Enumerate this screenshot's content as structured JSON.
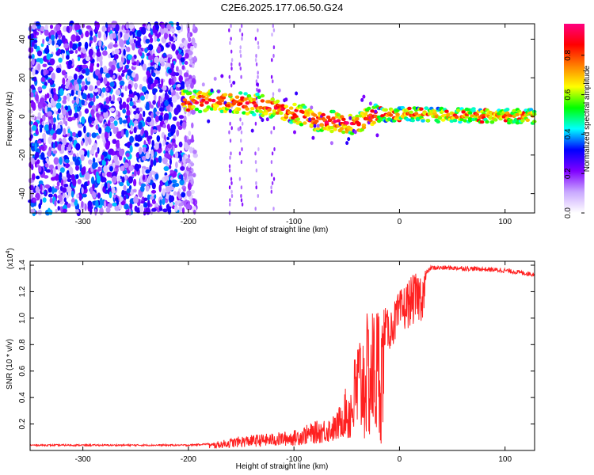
{
  "title": "C2E6.2025.177.06.50.G24",
  "chart_data": [
    {
      "type": "heatmap",
      "xlabel": "Height of straight line (km)",
      "ylabel": "Frequency (Hz)",
      "xlim": [
        -350,
        128
      ],
      "ylim": [
        -50,
        48
      ],
      "xticks": [
        -300,
        -200,
        -100,
        0,
        100
      ],
      "yticks": [
        -40,
        -20,
        0,
        20,
        40
      ],
      "colorbar": {
        "label": "Normalized spectral amplitude",
        "range": [
          0,
          0.96
        ],
        "ticks": [
          "0.0",
          "0.2",
          "0.4",
          "0.6",
          "0.8"
        ],
        "tick_values": [
          0,
          0.2,
          0.4,
          0.6,
          0.8
        ],
        "colors": [
          "#ffffff",
          "#c9a8ff",
          "#8000ff",
          "#0000ff",
          "#00ffff",
          "#00ff00",
          "#ffff00",
          "#ff8000",
          "#ff0000",
          "#ff0080"
        ]
      },
      "regions": {
        "noise_x": [
          -350,
          -205
        ],
        "signal_track": [
          {
            "x": -205,
            "y": 8
          },
          {
            "x": -180,
            "y": 8
          },
          {
            "x": -150,
            "y": 7
          },
          {
            "x": -120,
            "y": 5
          },
          {
            "x": -100,
            "y": 2
          },
          {
            "x": -80,
            "y": -2
          },
          {
            "x": -60,
            "y": -3
          },
          {
            "x": -40,
            "y": -4
          },
          {
            "x": -30,
            "y": -1
          },
          {
            "x": -20,
            "y": 1
          },
          {
            "x": 0,
            "y": 1
          },
          {
            "x": 128,
            "y": 0
          }
        ]
      }
    },
    {
      "type": "line",
      "xlabel": "Height of straight line (km)",
      "ylabel": "SNR (10 * v/v)",
      "yscale_label": "(x10",
      "yscale_exp": "4",
      "yscale_close": ")",
      "xlim": [
        -350,
        128
      ],
      "ylim": [
        0,
        1.43
      ],
      "xticks": [
        -300,
        -200,
        -100,
        0,
        100
      ],
      "yticks": [
        "0.2",
        "0.4",
        "0.6",
        "0.8",
        "1.0",
        "1.2",
        "1.4"
      ],
      "ytick_values": [
        0.2,
        0.4,
        0.6,
        0.8,
        1.0,
        1.2,
        1.4
      ],
      "color": "#ff2020",
      "envelope": [
        {
          "x": -350,
          "y": 0.04
        },
        {
          "x": -200,
          "y": 0.04
        },
        {
          "x": -180,
          "y": 0.05
        },
        {
          "x": -150,
          "y": 0.1
        },
        {
          "x": -120,
          "y": 0.12
        },
        {
          "x": -100,
          "y": 0.14
        },
        {
          "x": -80,
          "y": 0.2
        },
        {
          "x": -60,
          "y": 0.25
        },
        {
          "x": -45,
          "y": 0.55
        },
        {
          "x": -40,
          "y": 0.85
        },
        {
          "x": -30,
          "y": 1.0
        },
        {
          "x": -20,
          "y": 1.1
        },
        {
          "x": -10,
          "y": 1.0
        },
        {
          "x": 0,
          "y": 1.15
        },
        {
          "x": 10,
          "y": 1.25
        },
        {
          "x": 20,
          "y": 1.3
        },
        {
          "x": 30,
          "y": 1.38
        },
        {
          "x": 50,
          "y": 1.38
        },
        {
          "x": 80,
          "y": 1.37
        },
        {
          "x": 100,
          "y": 1.36
        },
        {
          "x": 128,
          "y": 1.33
        }
      ]
    }
  ]
}
